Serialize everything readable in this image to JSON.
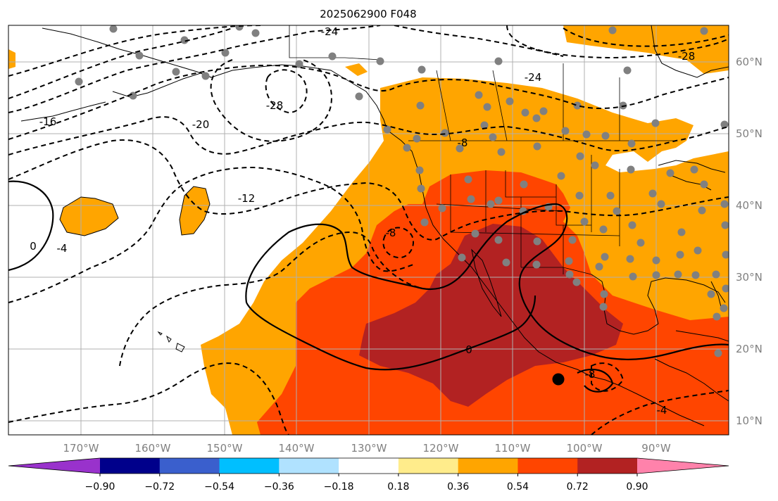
{
  "title": "2025062900 F048",
  "lat_labels": [
    "60°N",
    "50°N",
    "40°N",
    "30°N",
    "20°N",
    "10°N"
  ],
  "lon_labels": [
    "170°W",
    "160°W",
    "150°W",
    "140°W",
    "130°W",
    "120°W",
    "110°W",
    "100°W",
    "90°W"
  ],
  "colorbar": {
    "ticks": [
      "−0.90",
      "−0.72",
      "−0.54",
      "−0.36",
      "−0.18",
      "0.18",
      "0.36",
      "0.54",
      "0.72",
      "0.90"
    ],
    "colors": [
      "#9932cc",
      "#00008b",
      "#3a5fcd",
      "#00bfff",
      "#b0e2ff",
      "#ffffff",
      "#ffec8b",
      "#ffa500",
      "#ff4500",
      "#b22222",
      "#ff82ab"
    ]
  },
  "contour_labels": [
    "-24",
    "-24",
    "-28",
    "-28",
    "-16",
    "-20",
    "-12",
    "-8",
    "-8",
    "-4",
    "0",
    "0",
    "-4",
    "-8",
    "-4"
  ],
  "colors": {
    "orange": "#ffa500",
    "orangered": "#ff4500",
    "darkred": "#b22222",
    "station": "#808080",
    "grid": "#b0b0b0"
  }
}
